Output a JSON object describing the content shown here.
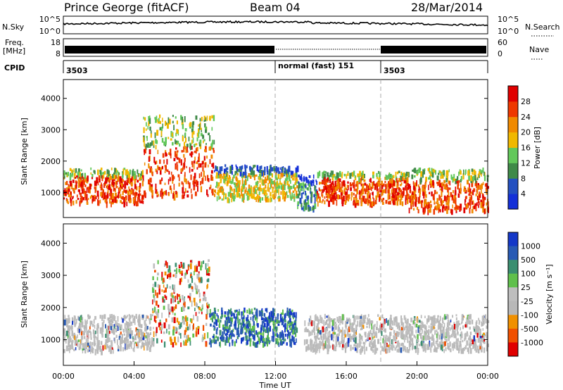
{
  "header": {
    "station": "Prince George (fitACF)",
    "beam": "Beam 04",
    "date": "28/Mar/2014"
  },
  "summary_panels": {
    "nsky_label": "N.Sky",
    "nsky_ticks": [
      "10^5",
      "10^0"
    ],
    "nsearch_label": "N.Search",
    "freq_label_line1": "Freq.",
    "freq_label_line2": "[MHz]",
    "freq_ticks": [
      "18",
      "8"
    ],
    "nave_label": "Nave",
    "nave_ticks": [
      "60",
      "0"
    ],
    "cpid_label": "CPID",
    "cpid_segments": [
      {
        "label": "3503",
        "start": "00:00",
        "end": "12:00"
      },
      {
        "label": "normal (fast) 151",
        "start": "12:00",
        "end": "18:00"
      },
      {
        "label": "3503",
        "start": "18:00",
        "end": "00:00"
      }
    ]
  },
  "colors": {
    "power_scale": [
      "#1430d8",
      "#2450c0",
      "#3f8a48",
      "#62c85a",
      "#f0b800",
      "#f08a00",
      "#ee3800",
      "#e00000"
    ],
    "velocity_scale": [
      "#1438c8",
      "#285ab4",
      "#3a8e70",
      "#60c04c",
      "#bebebe",
      "#b8b8b8",
      "#f09000",
      "#f05000",
      "#e00000"
    ]
  },
  "chart_data": [
    {
      "type": "heatmap",
      "name": "power",
      "xlabel": "Time UT",
      "ylabel": "Slant Range [km]",
      "x_ticks": [
        "00:00",
        "04:00",
        "08:00",
        "12:00",
        "16:00",
        "20:00",
        "00:00"
      ],
      "xlim_hours": [
        0,
        24
      ],
      "ylim": [
        200,
        4600
      ],
      "y_ticks": [
        1000,
        2000,
        3000,
        4000
      ],
      "colorbar_label": "Power [dB]",
      "colorbar_ticks": [
        4,
        8,
        12,
        16,
        20,
        24,
        28
      ],
      "colorbar_range": [
        0,
        32
      ],
      "dashed_time_markers": [
        "12:00",
        "18:00"
      ],
      "echo_regions": [
        {
          "t_start": 0.0,
          "t_end": 4.5,
          "range_min": 700,
          "range_max": 1800,
          "level": "strong"
        },
        {
          "t_start": 4.5,
          "t_end": 8.5,
          "range_min": 900,
          "range_max": 3500,
          "level": "strong"
        },
        {
          "t_start": 8.5,
          "t_end": 13.2,
          "range_min": 800,
          "range_max": 1900,
          "level": "moderate"
        },
        {
          "t_start": 13.2,
          "t_end": 14.3,
          "range_min": 500,
          "range_max": 1600,
          "level": "weak"
        },
        {
          "t_start": 14.3,
          "t_end": 19.5,
          "range_min": 700,
          "range_max": 1700,
          "level": "strong"
        },
        {
          "t_start": 19.5,
          "t_end": 24.0,
          "range_min": 450,
          "range_max": 1800,
          "level": "strong"
        }
      ]
    },
    {
      "type": "heatmap",
      "name": "velocity",
      "xlabel": "Time UT",
      "ylabel": "Slant Range [km]",
      "x_ticks": [
        "00:00",
        "04:00",
        "08:00",
        "12:00",
        "16:00",
        "20:00",
        "00:00"
      ],
      "xlim_hours": [
        0,
        24
      ],
      "ylim": [
        200,
        4600
      ],
      "y_ticks": [
        1000,
        2000,
        3000,
        4000
      ],
      "colorbar_label": "Velocity [m s⁻¹]",
      "colorbar_ticks": [
        "1000",
        "500",
        "100",
        "25",
        "-25",
        "-100",
        "-500",
        "-1000"
      ],
      "dashed_time_markers": [
        "12:00",
        "18:00"
      ],
      "echo_regions": [
        {
          "t_start": 0.0,
          "t_end": 5.0,
          "range_min": 700,
          "range_max": 1800,
          "class": "ground-scatter"
        },
        {
          "t_start": 5.0,
          "t_end": 8.2,
          "range_min": 900,
          "range_max": 3500,
          "class": "mixed"
        },
        {
          "t_start": 8.2,
          "t_end": 13.2,
          "range_min": 900,
          "range_max": 2000,
          "class": "positive"
        },
        {
          "t_start": 13.6,
          "t_end": 24.0,
          "range_min": 700,
          "range_max": 1800,
          "class": "ground-scatter"
        }
      ]
    }
  ]
}
